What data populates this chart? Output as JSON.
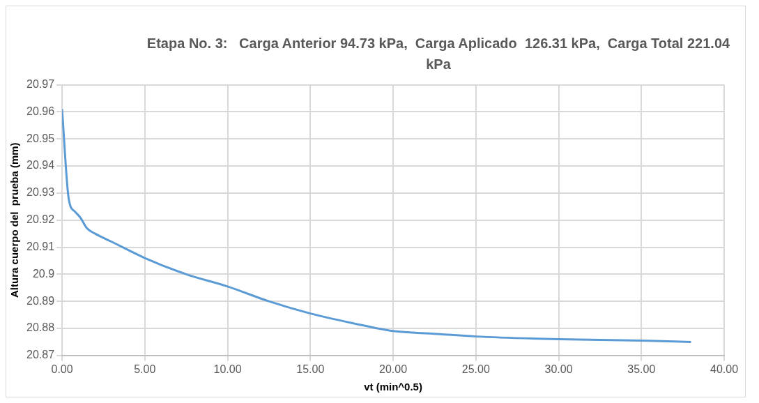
{
  "chart_data": {
    "type": "line",
    "title": "Etapa No. 3:   Carga Anterior 94.73 kPa,  Carga Aplicado  126.31 kPa,  Carga Total 221.04 kPa",
    "xlabel": "vt (min^0.5)",
    "ylabel": "Altura cuerpo del  prueba (mm)",
    "x": [
      0,
      0.4,
      0.8,
      1.1,
      1.5,
      2,
      3,
      5,
      7.5,
      10,
      12.5,
      15,
      17.5,
      20,
      22.5,
      25,
      30,
      35,
      38
    ],
    "series": [
      {
        "color": "#5b9bd5",
        "values": [
          20.961,
          20.928,
          20.923,
          20.921,
          20.917,
          20.915,
          20.912,
          20.906,
          20.9,
          20.8955,
          20.89,
          20.8855,
          20.882,
          20.879,
          20.878,
          20.877,
          20.876,
          20.8755,
          20.875
        ]
      }
    ],
    "xlim": [
      0,
      40
    ],
    "xticks": [
      {
        "value": 0,
        "label": "0.00"
      },
      {
        "value": 5,
        "label": "5.00"
      },
      {
        "value": 10,
        "label": "10.00"
      },
      {
        "value": 15,
        "label": "15.00"
      },
      {
        "value": 20,
        "label": "20.00"
      },
      {
        "value": 25,
        "label": "25.00"
      },
      {
        "value": 30,
        "label": "30.00"
      },
      {
        "value": 35,
        "label": "35.00"
      },
      {
        "value": 40,
        "label": "40.00"
      }
    ],
    "ylim": [
      20.87,
      20.97
    ],
    "yticks": [
      20.87,
      20.88,
      20.89,
      20.9,
      20.91,
      20.92,
      20.93,
      20.94,
      20.95,
      20.96,
      20.97
    ],
    "grid": true,
    "legend": false,
    "marker": "none",
    "line_style": "solid"
  }
}
